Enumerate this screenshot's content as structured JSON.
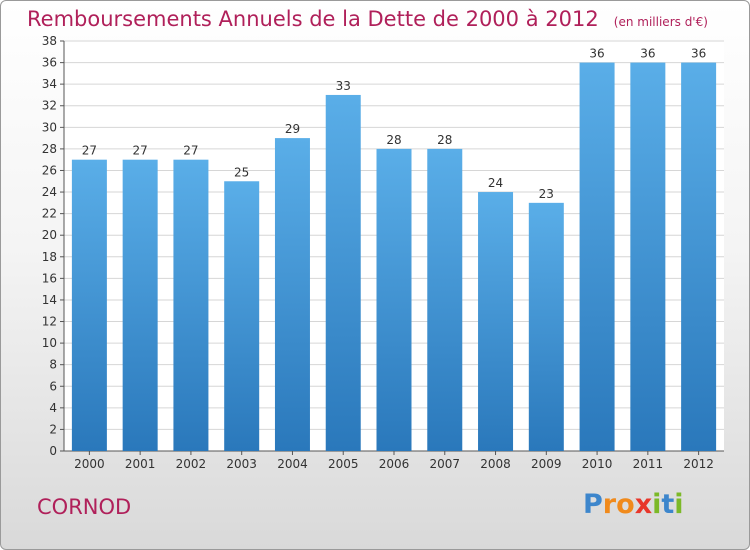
{
  "chart_data": {
    "type": "bar",
    "title": "Remboursements Annuels de la Dette de 2000 à 2012",
    "subtitle": "(en milliers d'€)",
    "categories": [
      "2000",
      "2001",
      "2002",
      "2003",
      "2004",
      "2005",
      "2006",
      "2007",
      "2008",
      "2009",
      "2010",
      "2011",
      "2012"
    ],
    "values": [
      27,
      27,
      27,
      25,
      29,
      33,
      28,
      28,
      24,
      23,
      36,
      36,
      36
    ],
    "xlabel": "",
    "ylabel": "",
    "ylim": [
      0,
      38
    ],
    "yticks": [
      0,
      2,
      4,
      6,
      8,
      10,
      12,
      14,
      16,
      18,
      20,
      22,
      24,
      26,
      28,
      30,
      32,
      34,
      36,
      38
    ],
    "grid": true,
    "bar_color_top": "#5aaee8",
    "bar_color_bottom": "#2a78bb"
  },
  "place_name": "CORNOD",
  "logo": {
    "letters": [
      "P",
      "r",
      "o",
      "x",
      "i",
      "t",
      "i"
    ],
    "colors": [
      "#3d86cc",
      "#f08a1c",
      "#f08a1c",
      "#e8362a",
      "#7cb928",
      "#3d86cc",
      "#7cb928"
    ]
  }
}
